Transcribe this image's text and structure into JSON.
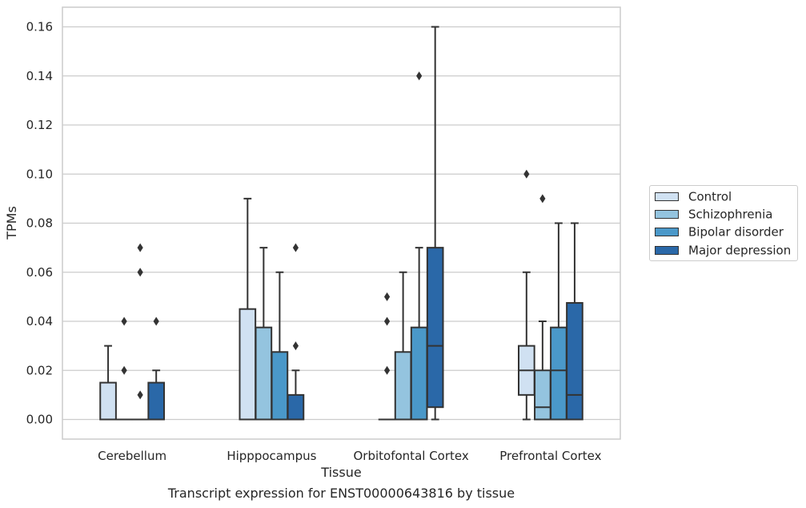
{
  "caption": "Transcript expression for ENST00000643816 by tissue",
  "chart_data": {
    "type": "box",
    "xlabel": "Tissue",
    "ylabel": "TPMs",
    "ylim": [
      -0.008,
      0.168
    ],
    "yticks": [
      "0.00",
      "0.02",
      "0.04",
      "0.06",
      "0.08",
      "0.10",
      "0.12",
      "0.14",
      "0.16"
    ],
    "categories": [
      "Cerebellum",
      "Hipppocampus",
      "Orbitofontal Cortex",
      "Prefrontal Cortex"
    ],
    "grid": "horizontal",
    "legend_position": "right",
    "series": [
      {
        "name": "Control",
        "color": "#d0e1f2",
        "boxes": [
          {
            "q1": 0.0,
            "median": 0.0,
            "q3": 0.015,
            "whisker_low": 0.0,
            "whisker_high": 0.03,
            "outliers": []
          },
          {
            "q1": 0.0,
            "median": 0.0,
            "q3": 0.045,
            "whisker_low": 0.0,
            "whisker_high": 0.09,
            "outliers": []
          },
          {
            "q1": 0.0,
            "median": 0.0,
            "q3": 0.0,
            "whisker_low": 0.0,
            "whisker_high": 0.0,
            "outliers": [
              0.02,
              0.04,
              0.05
            ]
          },
          {
            "q1": 0.01,
            "median": 0.02,
            "q3": 0.03,
            "whisker_low": 0.0,
            "whisker_high": 0.06,
            "outliers": [
              0.1
            ]
          }
        ]
      },
      {
        "name": "Schizophrenia",
        "color": "#94c4df",
        "boxes": [
          {
            "q1": 0.0,
            "median": 0.0,
            "q3": 0.0,
            "whisker_low": 0.0,
            "whisker_high": 0.0,
            "outliers": [
              0.02,
              0.04
            ]
          },
          {
            "q1": 0.0,
            "median": 0.0,
            "q3": 0.0375,
            "whisker_low": 0.0,
            "whisker_high": 0.07,
            "outliers": []
          },
          {
            "q1": 0.0,
            "median": 0.0,
            "q3": 0.0275,
            "whisker_low": 0.0,
            "whisker_high": 0.06,
            "outliers": []
          },
          {
            "q1": 0.0,
            "median": 0.005,
            "q3": 0.02,
            "whisker_low": 0.0,
            "whisker_high": 0.04,
            "outliers": [
              0.09
            ]
          }
        ]
      },
      {
        "name": "Bipolar disorder",
        "color": "#4a98c9",
        "boxes": [
          {
            "q1": 0.0,
            "median": 0.0,
            "q3": 0.0,
            "whisker_low": 0.0,
            "whisker_high": 0.0,
            "outliers": [
              0.01,
              0.06,
              0.07
            ]
          },
          {
            "q1": 0.0,
            "median": 0.0,
            "q3": 0.0275,
            "whisker_low": 0.0,
            "whisker_high": 0.06,
            "outliers": []
          },
          {
            "q1": 0.0,
            "median": 0.0,
            "q3": 0.0375,
            "whisker_low": 0.0,
            "whisker_high": 0.07,
            "outliers": [
              0.14
            ]
          },
          {
            "q1": 0.0,
            "median": 0.02,
            "q3": 0.0375,
            "whisker_low": 0.0,
            "whisker_high": 0.08,
            "outliers": []
          }
        ]
      },
      {
        "name": "Major depression",
        "color": "#2a68a8",
        "boxes": [
          {
            "q1": 0.0,
            "median": 0.0,
            "q3": 0.015,
            "whisker_low": 0.0,
            "whisker_high": 0.02,
            "outliers": [
              0.04
            ]
          },
          {
            "q1": 0.0,
            "median": 0.0,
            "q3": 0.01,
            "whisker_low": 0.0,
            "whisker_high": 0.02,
            "outliers": [
              0.03,
              0.07
            ]
          },
          {
            "q1": 0.005,
            "median": 0.03,
            "q3": 0.07,
            "whisker_low": 0.0,
            "whisker_high": 0.16,
            "outliers": []
          },
          {
            "q1": 0.0,
            "median": 0.01,
            "q3": 0.0475,
            "whisker_low": 0.0,
            "whisker_high": 0.08,
            "outliers": []
          }
        ]
      }
    ]
  }
}
